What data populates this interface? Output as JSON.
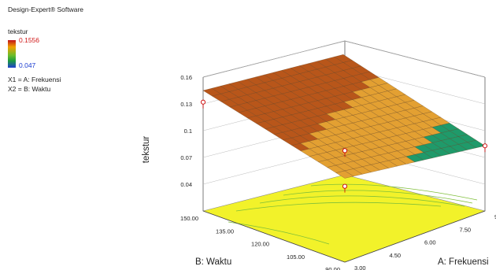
{
  "software": "Design-Expert® Software",
  "response": {
    "name": "tekstur",
    "high_label": "0.1556",
    "low_label": "0.047",
    "high_color": "#c1121c",
    "low_color": "#1f3fd0"
  },
  "factors": {
    "x1": "X1 = A: Frekuensi",
    "x2": "X2 = B: Waktu"
  },
  "chart_data": {
    "type": "surface3d",
    "zlabel": "tekstur",
    "xlabel": "A: Frekuensi",
    "ylabel": "B: Waktu",
    "z_ticks": [
      "0.16",
      "0.13",
      "0.1",
      "0.07",
      "0.04"
    ],
    "x_ticks": [
      "3.00",
      "4.50",
      "6.00",
      "7.50",
      "9"
    ],
    "y_ticks": [
      "90.00",
      "105.00",
      "120.00",
      "135.00",
      "150.00"
    ],
    "zlim": [
      0.01,
      0.16
    ],
    "xlim": [
      3,
      9
    ],
    "ylim": [
      90,
      150
    ],
    "design_points": [
      {
        "A": 3,
        "B": 150,
        "tekstur": 0.132
      },
      {
        "A": 3,
        "B": 90,
        "tekstur": 0.135
      },
      {
        "A": 3,
        "B": 90,
        "tekstur": 0.095
      },
      {
        "A": 9,
        "B": 90,
        "tekstur": 0.083
      }
    ],
    "surface_corners": {
      "A3_B150": 0.145,
      "A9_B150": 0.128,
      "A3_B90": 0.104,
      "A9_B90": 0.083
    },
    "colors": {
      "surface_high": "#b8561a",
      "surface_mid": "#e3a032",
      "surface_low": "#1f9a6a",
      "floor": "#f2f22a",
      "contours": "#7fbf3a"
    }
  }
}
